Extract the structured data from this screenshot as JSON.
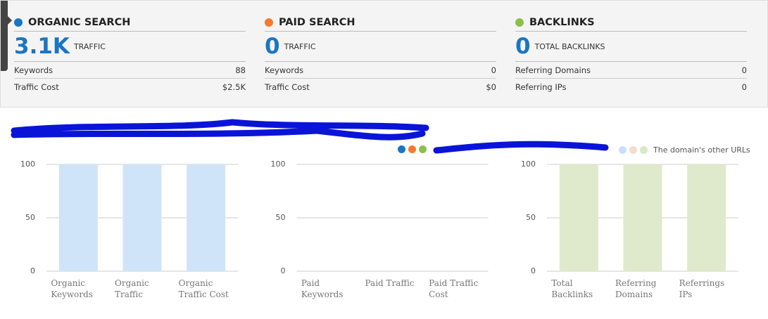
{
  "panels": [
    {
      "title": "ORGANIC SEARCH",
      "color": "#1a76c2",
      "value": "3.1K",
      "value_label": "TRAFFIC",
      "rows": [
        [
          "Keywords",
          "88"
        ],
        [
          "Traffic Cost",
          "$2.5K"
        ]
      ]
    },
    {
      "title": "PAID SEARCH",
      "color": "#f47a30",
      "value": "0",
      "value_label": "TRAFFIC",
      "rows": [
        [
          "Keywords",
          "0"
        ],
        [
          "Traffic Cost",
          "$0"
        ]
      ]
    },
    {
      "title": "BACKLINKS",
      "color": "#8cc04b",
      "value": "0",
      "value_label": "TOTAL BACKLINKS",
      "rows": [
        [
          "Referring Domains",
          "0"
        ],
        [
          "Referring IPs",
          "0"
        ]
      ]
    }
  ],
  "legend_main_colors": [
    "#1a76c2",
    "#f47a30",
    "#8cc04b"
  ],
  "legend": {
    "label": "The domain's other URLs",
    "colors": [
      "#c7e0f7",
      "#f7dccb",
      "#d9e8c6"
    ]
  },
  "chart_data": [
    {
      "type": "bar",
      "categories": [
        "Organic Keywords",
        "Organic Traffic",
        "Organic Traffic Cost"
      ],
      "values": [
        100,
        100,
        100
      ],
      "color": "#cfe4f8",
      "ylim": [
        0,
        100
      ],
      "yticks": [
        0,
        50,
        100
      ],
      "grid": true
    },
    {
      "type": "bar",
      "categories": [
        "Paid Keywords",
        "Paid Traffic",
        "Paid Traffic Cost"
      ],
      "values": [
        0,
        0,
        0
      ],
      "color": "#fbd9c5",
      "ylim": [
        0,
        100
      ],
      "yticks": [
        0,
        50,
        100
      ],
      "grid": true
    },
    {
      "type": "bar",
      "categories": [
        "Total Backlinks",
        "Referring Domains",
        "Referrings IPs"
      ],
      "values": [
        100,
        100,
        100
      ],
      "color": "#dfe9cc",
      "ylim": [
        0,
        100
      ],
      "yticks": [
        0,
        50,
        100
      ],
      "grid": true
    }
  ]
}
